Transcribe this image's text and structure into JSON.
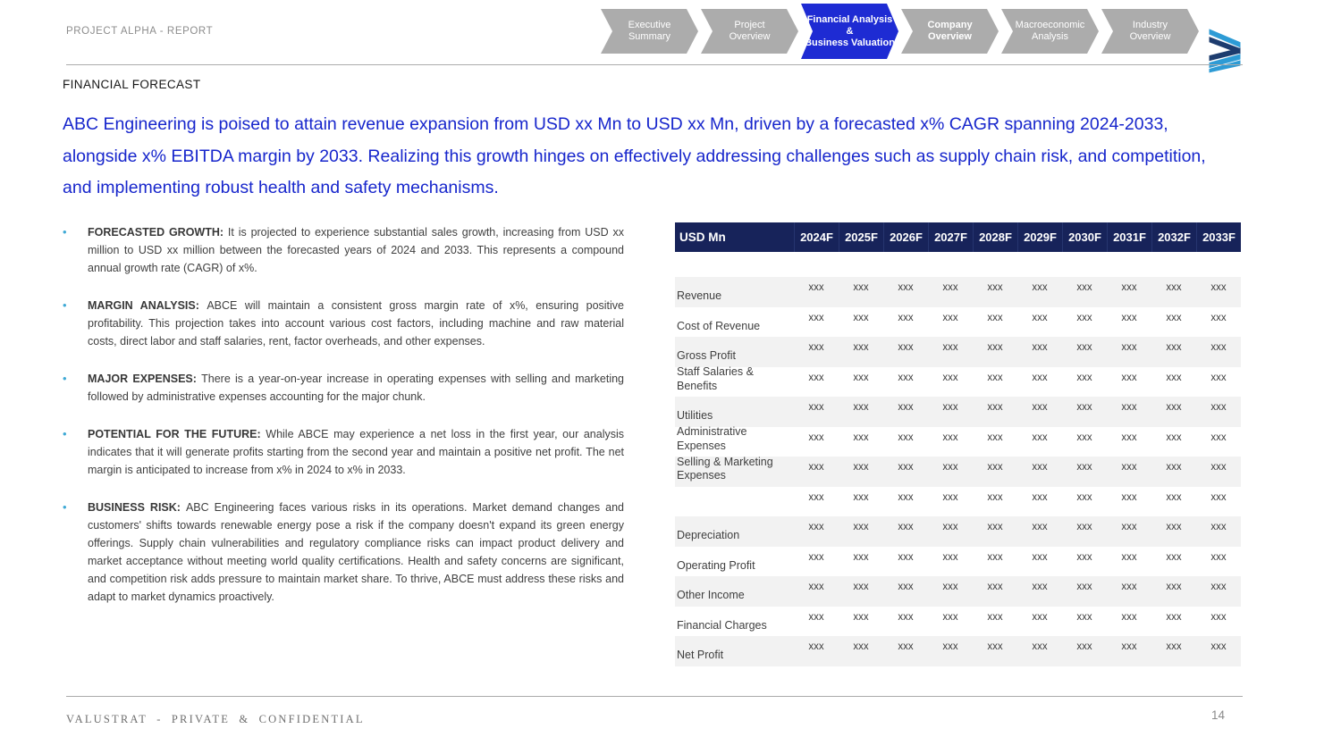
{
  "header": {
    "report_label": "PROJECT ALPHA - REPORT",
    "nav": [
      {
        "label": "Executive Summary",
        "lines": [
          "Executive",
          "Summary"
        ],
        "active": false,
        "bold": false
      },
      {
        "label": "Project Overview",
        "lines": [
          "Project",
          "Overview"
        ],
        "active": false,
        "bold": false
      },
      {
        "label": "Financial Analysis & Business Valuation",
        "lines": [
          "Financial Analysis",
          "&",
          "Business Valuation"
        ],
        "active": true,
        "bold": false
      },
      {
        "label": "Company Overview",
        "lines": [
          "Company",
          "Overview"
        ],
        "active": false,
        "bold": true
      },
      {
        "label": "Macroeconomic Analysis",
        "lines": [
          "Macroeconomic",
          "Analysis"
        ],
        "active": false,
        "bold": false
      },
      {
        "label": "Industry Overview",
        "lines": [
          "Industry",
          "Overview"
        ],
        "active": false,
        "bold": false
      }
    ]
  },
  "section_label": "FINANCIAL FORECAST",
  "title": "ABC Engineering is poised to attain revenue expansion from USD xx Mn to USD xx Mn, driven by a forecasted x% CAGR spanning 2024-2033, alongside x% EBITDA margin by 2033. Realizing this growth hinges on effectively addressing challenges such as supply chain risk, and competition, and implementing robust health and safety mechanisms.",
  "bullets": [
    {
      "label": "FORECASTED GROWTH:",
      "text": "It is projected to experience substantial sales growth, increasing from USD xx million to USD xx million between the forecasted years of 2024 and 2033. This represents a compound annual growth rate (CAGR) of x%."
    },
    {
      "label": "MARGIN ANALYSIS:",
      "text": "ABCE will maintain a consistent gross margin rate of x%, ensuring positive profitability. This projection takes into account various cost factors, including machine and raw material costs, direct labor and staff salaries, rent, factor overheads, and other expenses."
    },
    {
      "label": "MAJOR EXPENSES:",
      "text": "There is a year-on-year increase in operating expenses with selling and marketing followed by administrative expenses accounting for the major chunk."
    },
    {
      "label": "POTENTIAL FOR THE FUTURE:",
      "text": "While ABCE may experience a net loss in the first year, our analysis indicates that it will generate profits starting from the second year and maintain a positive net profit. The net margin is anticipated to increase from x% in 2024 to x% in 2033."
    },
    {
      "label": "BUSINESS RISK:",
      "text": "ABC Engineering faces various risks in its operations. Market demand changes and customers' shifts towards renewable energy pose a risk if the company doesn't expand its green energy offerings. Supply chain vulnerabilities and regulatory compliance risks can impact product delivery and market acceptance without meeting world quality certifications. Health and safety concerns are significant, and competition risk adds pressure to maintain market share. To thrive, ABCE must address these risks and adapt to market dynamics proactively."
    }
  ],
  "table": {
    "unit_label": "USD Mn",
    "columns": [
      "2024F",
      "2025F",
      "2026F",
      "2027F",
      "2028F",
      "2029F",
      "2030F",
      "2031F",
      "2032F",
      "2033F"
    ],
    "rows": [
      {
        "label": "Revenue",
        "values": [
          "xxx",
          "xxx",
          "xxx",
          "xxx",
          "xxx",
          "xxx",
          "xxx",
          "xxx",
          "xxx",
          "xxx"
        ]
      },
      {
        "label": "Cost of Revenue",
        "values": [
          "xxx",
          "xxx",
          "xxx",
          "xxx",
          "xxx",
          "xxx",
          "xxx",
          "xxx",
          "xxx",
          "xxx"
        ]
      },
      {
        "label": "Gross Profit",
        "values": [
          "xxx",
          "xxx",
          "xxx",
          "xxx",
          "xxx",
          "xxx",
          "xxx",
          "xxx",
          "xxx",
          "xxx"
        ]
      },
      {
        "label": "Staff Salaries & Benefits",
        "values": [
          "xxx",
          "xxx",
          "xxx",
          "xxx",
          "xxx",
          "xxx",
          "xxx",
          "xxx",
          "xxx",
          "xxx"
        ]
      },
      {
        "label": "Utilities",
        "values": [
          "xxx",
          "xxx",
          "xxx",
          "xxx",
          "xxx",
          "xxx",
          "xxx",
          "xxx",
          "xxx",
          "xxx"
        ]
      },
      {
        "label": "Administrative Expenses",
        "values": [
          "xxx",
          "xxx",
          "xxx",
          "xxx",
          "xxx",
          "xxx",
          "xxx",
          "xxx",
          "xxx",
          "xxx"
        ]
      },
      {
        "label": "Selling & Marketing Expenses",
        "values": [
          "xxx",
          "xxx",
          "xxx",
          "xxx",
          "xxx",
          "xxx",
          "xxx",
          "xxx",
          "xxx",
          "xxx"
        ]
      },
      {
        "label": "",
        "values": [
          "xxx",
          "xxx",
          "xxx",
          "xxx",
          "xxx",
          "xxx",
          "xxx",
          "xxx",
          "xxx",
          "xxx"
        ]
      },
      {
        "label": "Depreciation",
        "values": [
          "xxx",
          "xxx",
          "xxx",
          "xxx",
          "xxx",
          "xxx",
          "xxx",
          "xxx",
          "xxx",
          "xxx"
        ]
      },
      {
        "label": "Operating Profit",
        "values": [
          "xxx",
          "xxx",
          "xxx",
          "xxx",
          "xxx",
          "xxx",
          "xxx",
          "xxx",
          "xxx",
          "xxx"
        ]
      },
      {
        "label": "Other Income",
        "values": [
          "xxx",
          "xxx",
          "xxx",
          "xxx",
          "xxx",
          "xxx",
          "xxx",
          "xxx",
          "xxx",
          "xxx"
        ]
      },
      {
        "label": "Financial Charges",
        "values": [
          "xxx",
          "xxx",
          "xxx",
          "xxx",
          "xxx",
          "xxx",
          "xxx",
          "xxx",
          "xxx",
          "xxx"
        ]
      },
      {
        "label": "Net Profit",
        "values": [
          "xxx",
          "xxx",
          "xxx",
          "xxx",
          "xxx",
          "xxx",
          "xxx",
          "xxx",
          "xxx",
          "xxx"
        ]
      }
    ]
  },
  "footer": {
    "confidentiality": "VALUSTRAT - PRIVATE & CONFIDENTIAL",
    "page_number": "14"
  },
  "colors": {
    "accent_blue": "#1e2bd3",
    "title_blue": "#1726cc",
    "table_header_navy": "#17235a",
    "chevron_gray": "#acacac",
    "row_stripe": "#f2f2f2",
    "body_text": "#3f3f3f",
    "bullet_dot": "#3fa9d5",
    "logo_light_blue": "#2d9bd5",
    "logo_navy": "#1d3c6e"
  }
}
